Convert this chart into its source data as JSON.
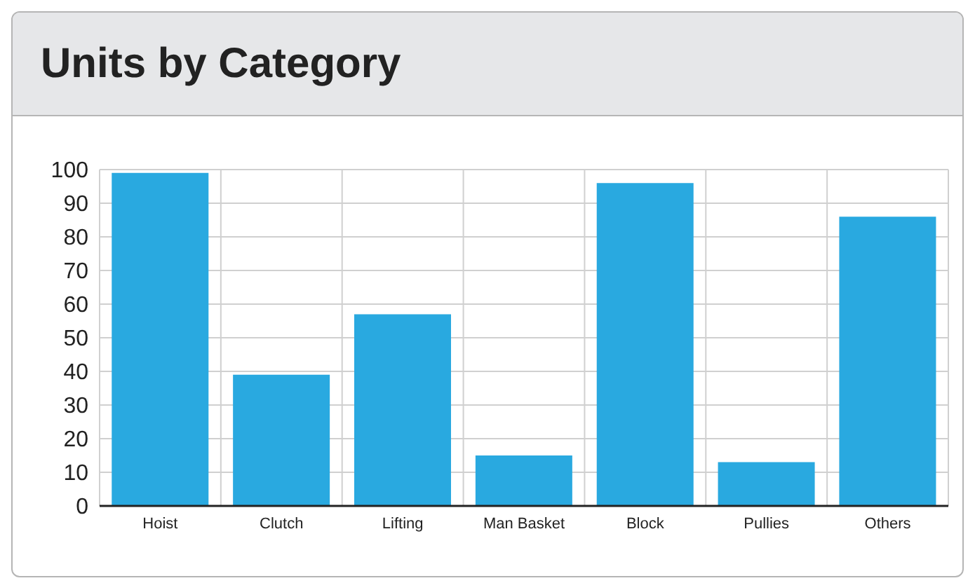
{
  "chart_data": {
    "type": "bar",
    "title": "Units by Category",
    "categories": [
      "Hoist",
      "Clutch",
      "Lifting",
      "Man Basket",
      "Block",
      "Pullies",
      "Others"
    ],
    "values": [
      99,
      39,
      57,
      15,
      96,
      13,
      86
    ],
    "color": "#29a9e0",
    "ylim": [
      0,
      100
    ],
    "yticks": [
      0,
      10,
      20,
      30,
      40,
      50,
      60,
      70,
      80,
      90,
      100
    ],
    "grid": true
  }
}
